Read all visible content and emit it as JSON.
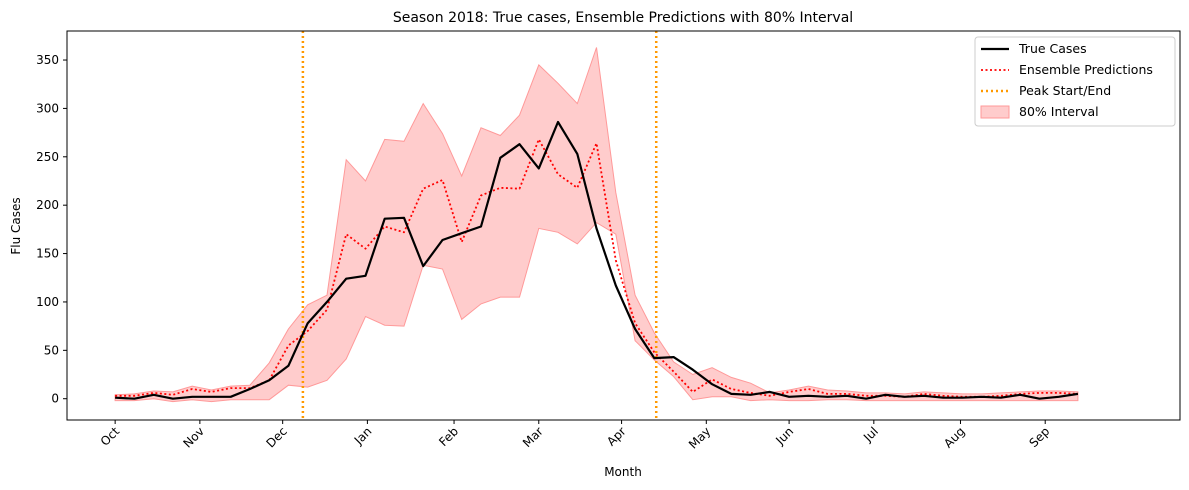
{
  "chart_data": {
    "type": "line",
    "title": "Season 2018: True cases, Ensemble Predictions with 80% Interval",
    "xlabel": "Month",
    "ylabel": "Flu Cases",
    "ylim": [
      -22,
      380
    ],
    "y_ticks": [
      0,
      50,
      100,
      150,
      200,
      250,
      300,
      350
    ],
    "x_ticks": [
      {
        "label": "Oct",
        "x": 0
      },
      {
        "label": "Nov",
        "x": 4.4
      },
      {
        "label": "Dec",
        "x": 8.7
      },
      {
        "label": "Jan",
        "x": 13.1
      },
      {
        "label": "Feb",
        "x": 17.6
      },
      {
        "label": "Mar",
        "x": 22.0
      },
      {
        "label": "Apr",
        "x": 26.3
      },
      {
        "label": "May",
        "x": 30.7
      },
      {
        "label": "Jun",
        "x": 35.0
      },
      {
        "label": "Jul",
        "x": 39.4
      },
      {
        "label": "Aug",
        "x": 43.9
      },
      {
        "label": "Sep",
        "x": 48.3
      }
    ],
    "xlim": [
      -2.5,
      55.3
    ],
    "grid": false,
    "legend_position": "top-right",
    "vlines": {
      "name": "Peak Start/End",
      "color": "#ff9900",
      "x": [
        9.75,
        28.1
      ]
    },
    "series": [
      {
        "name": "True Cases",
        "color": "#000000",
        "style": "solid",
        "values": [
          1,
          0,
          4,
          0,
          2,
          2,
          2,
          10,
          19,
          34,
          78,
          100,
          124,
          127,
          186,
          187,
          137,
          164,
          171,
          178,
          249,
          263,
          238,
          286,
          253,
          176,
          117,
          72,
          42,
          43,
          30,
          15,
          5,
          4,
          7,
          2,
          3,
          2,
          3,
          0,
          4,
          2,
          3,
          1,
          1,
          2,
          1,
          4,
          0,
          2,
          5
        ]
      },
      {
        "name": "Ensemble Predictions",
        "color": "#ff0000",
        "style": "dotted",
        "values": [
          3,
          3,
          6,
          4,
          10,
          7,
          11,
          11,
          19,
          55,
          70,
          92,
          170,
          155,
          178,
          172,
          217,
          226,
          162,
          210,
          218,
          217,
          268,
          232,
          218,
          264,
          143,
          78,
          48,
          28,
          7,
          20,
          10,
          6,
          3,
          7,
          10,
          5,
          5,
          3,
          3,
          2,
          5,
          3,
          2,
          2,
          3,
          5,
          6,
          6,
          5
        ]
      }
    ],
    "band": {
      "name": "80% Interval",
      "color": "#ff9999",
      "upper": [
        4,
        5,
        8,
        7,
        13,
        9,
        13,
        14,
        37,
        72,
        97,
        107,
        247,
        225,
        268,
        266,
        305,
        274,
        230,
        280,
        272,
        293,
        345,
        326,
        305,
        363,
        213,
        107,
        68,
        38,
        25,
        32,
        22,
        16,
        6,
        9,
        13,
        9,
        8,
        6,
        6,
        5,
        7,
        6,
        5,
        5,
        6,
        7,
        8,
        8,
        7
      ],
      "lower": [
        -2,
        -2,
        0,
        -3,
        -1,
        -3,
        -1,
        -1,
        -1,
        14,
        12,
        19,
        41,
        85,
        76,
        75,
        138,
        134,
        82,
        98,
        105,
        105,
        176,
        172,
        160,
        182,
        170,
        60,
        40,
        23,
        -1,
        2,
        2,
        -2,
        -1,
        -2,
        -2,
        -1,
        -1,
        -2,
        -2,
        -2,
        -2,
        -2,
        -2,
        -2,
        -2,
        -2,
        -2,
        -2,
        -2
      ]
    }
  }
}
